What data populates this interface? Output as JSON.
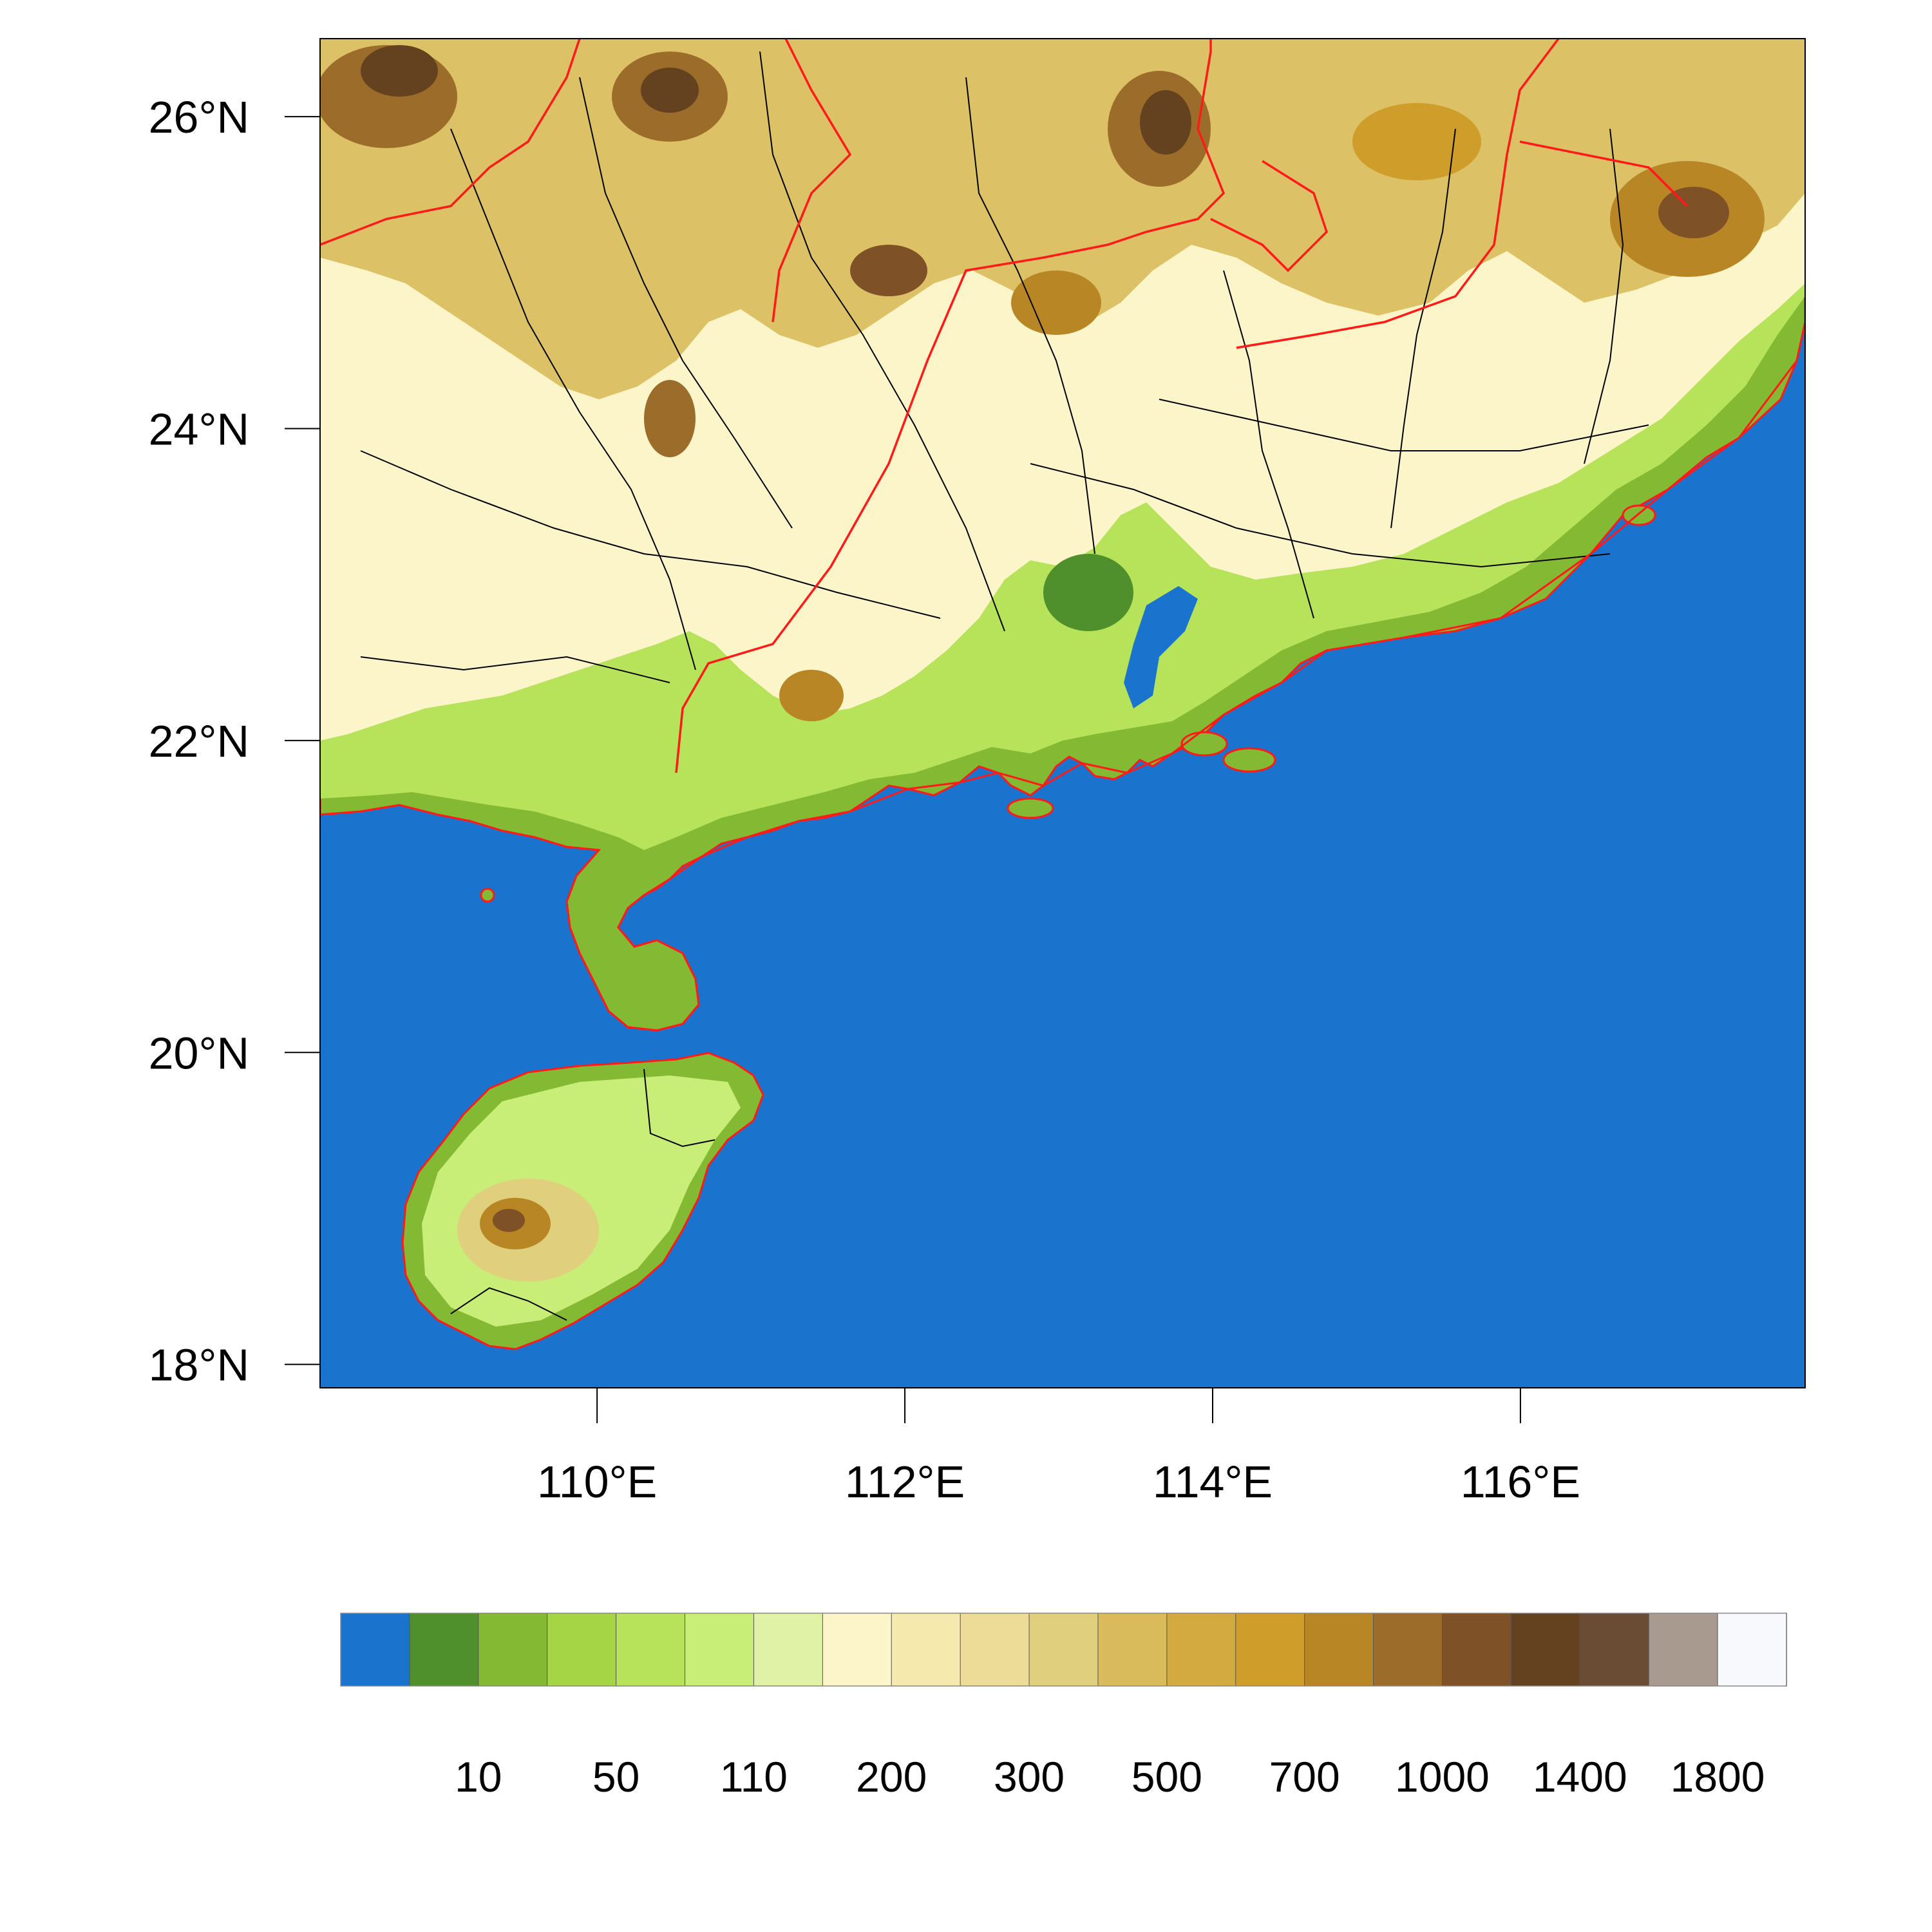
{
  "map": {
    "lon_range": [
      108.2,
      117.85
    ],
    "lat_range": [
      17.85,
      26.5
    ],
    "lat_ticks": [
      {
        "value": 18,
        "label": "18°N"
      },
      {
        "value": 20,
        "label": "20°N"
      },
      {
        "value": 22,
        "label": "22°N"
      },
      {
        "value": 24,
        "label": "24°N"
      },
      {
        "value": 26,
        "label": "26°N"
      }
    ],
    "lon_ticks": [
      {
        "value": 110,
        "label": "110°E"
      },
      {
        "value": 112,
        "label": "112°E"
      },
      {
        "value": 114,
        "label": "114°E"
      },
      {
        "value": 116,
        "label": "116°E"
      }
    ],
    "colors": {
      "sea": "#1a73cc",
      "province_border": "#ff1a1a",
      "county_border": "#000000"
    }
  },
  "colorbar": {
    "colors": [
      "#1a73cc",
      "#4f8f2c",
      "#84b934",
      "#a5d444",
      "#b6e35a",
      "#c8ee78",
      "#dff2a6",
      "#fbf5c9",
      "#f5e9ad",
      "#ecdc98",
      "#e0cf7c",
      "#d9bb5b",
      "#d2aa3f",
      "#cf9d2a",
      "#b98626",
      "#9c6d2a",
      "#7f5126",
      "#64411f",
      "#6a4c34",
      "#a89a8f",
      "#f8f9fc"
    ],
    "labels": [
      {
        "boundary_index": 2,
        "text": "10"
      },
      {
        "boundary_index": 4,
        "text": "50"
      },
      {
        "boundary_index": 6,
        "text": "110"
      },
      {
        "boundary_index": 8,
        "text": "200"
      },
      {
        "boundary_index": 10,
        "text": "300"
      },
      {
        "boundary_index": 12,
        "text": "500"
      },
      {
        "boundary_index": 14,
        "text": "700"
      },
      {
        "boundary_index": 16,
        "text": "1000"
      },
      {
        "boundary_index": 18,
        "text": "1400"
      },
      {
        "boundary_index": 20,
        "text": "1800"
      }
    ]
  }
}
